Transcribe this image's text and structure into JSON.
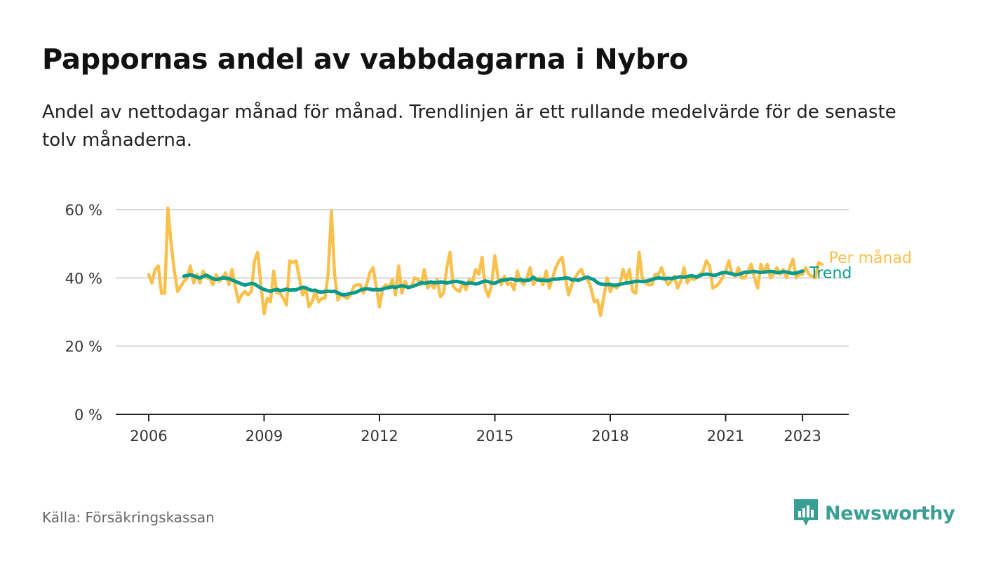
{
  "title": "Pappornas andel av vabbdagarna i Nybro",
  "subtitle": "Andel av nettodagar månad för månad. Trendlinjen är ett rullande medelvärde för de senaste tolv månaderna.",
  "source": "Källa: Försäkringskassan",
  "brand": "Newsworthy",
  "colors": {
    "monthly": "#f9c04c",
    "trend": "#0a9a8c",
    "grid": "#d6d6d6",
    "axis": "#222222",
    "brand": "#3a9e94"
  },
  "chart_data": {
    "type": "line",
    "x_start": "2006-01",
    "ylim": [
      0,
      60
    ],
    "yticks": [
      {
        "value": 0,
        "label": "0 %"
      },
      {
        "value": 20,
        "label": "20 %"
      },
      {
        "value": 40,
        "label": "40 %"
      },
      {
        "value": 60,
        "label": "60 %"
      }
    ],
    "xticks": [
      {
        "value": "2006-01",
        "label": "2006"
      },
      {
        "value": "2009-01",
        "label": "2009"
      },
      {
        "value": "2012-01",
        "label": "2012"
      },
      {
        "value": "2015-01",
        "label": "2015"
      },
      {
        "value": "2018-01",
        "label": "2018"
      },
      {
        "value": "2021-01",
        "label": "2021"
      },
      {
        "value": "2023-01",
        "label": "2023"
      }
    ],
    "grid": true,
    "series": [
      {
        "name": "Per månad",
        "start": "2006-01",
        "values": [
          41,
          38.5,
          42.5,
          43.5,
          35.5,
          35.5,
          60.5,
          50,
          42,
          36,
          37.5,
          39,
          40,
          43.5,
          38.5,
          41,
          38.5,
          42,
          40,
          40,
          38,
          41,
          39,
          40,
          41.5,
          38,
          42.5,
          37.5,
          33,
          35,
          36,
          35,
          36,
          45,
          47.5,
          38,
          29.5,
          34,
          33,
          42,
          35.5,
          35.5,
          34,
          32,
          45,
          44.5,
          45,
          40,
          35,
          37,
          31.5,
          33,
          36,
          33,
          34,
          34,
          41.5,
          59.5,
          41,
          33.5,
          35,
          34.5,
          34,
          35,
          37.5,
          38,
          38,
          35.5,
          38,
          41.5,
          43,
          37.5,
          31.5,
          37,
          38,
          37,
          39.5,
          35,
          43.5,
          35.5,
          39,
          37,
          37.5,
          40,
          39.5,
          38,
          42.5,
          37,
          38.5,
          37,
          39.5,
          34.5,
          35.5,
          43,
          47.5,
          37.5,
          36.5,
          36,
          38.5,
          36.5,
          39.5,
          38.5,
          42.5,
          41,
          46,
          37,
          34.5,
          38,
          46.5,
          40,
          38,
          40.5,
          38,
          38.5,
          36.5,
          42,
          39,
          38,
          40,
          43,
          38,
          39.5,
          40,
          38,
          42,
          37,
          40,
          43,
          45,
          46,
          40,
          35,
          38,
          40,
          41.5,
          42.5,
          40,
          39.5,
          37,
          33,
          33.5,
          29,
          34.5,
          40,
          36,
          38,
          37,
          38,
          42.5,
          39.5,
          42.5,
          36,
          35.5,
          47.5,
          40,
          38.5,
          38,
          38,
          41,
          41,
          43,
          40,
          38,
          39,
          40.5,
          37,
          39,
          43,
          38.5,
          40,
          39.5,
          40,
          41,
          42,
          45,
          43.5,
          37,
          37.5,
          38.5,
          40,
          42,
          45,
          41,
          40.5,
          43,
          40,
          40,
          42,
          44,
          40,
          37,
          44,
          41.5,
          44,
          40,
          41,
          43,
          41,
          42.5,
          40,
          43,
          45.5,
          40,
          41,
          41,
          43,
          41,
          40.5,
          40,
          44.5,
          44
        ]
      },
      {
        "name": "Trend",
        "start": "2006-12",
        "values": [
          40.5,
          40.7,
          40.9,
          40.6,
          40.2,
          40,
          40.4,
          40.8,
          40.3,
          39.8,
          39.5,
          39.7,
          40,
          39.9,
          39.8,
          39.4,
          39,
          38.6,
          38.2,
          37.9,
          38.1,
          38.4,
          38.2,
          37.6,
          37,
          36.6,
          36.3,
          36.1,
          36.4,
          36.6,
          36.3,
          36.4,
          36.7,
          36.4,
          36.5,
          36.5,
          36.9,
          37.2,
          37.1,
          36.6,
          36.3,
          36.4,
          35.9,
          35.8,
          36,
          36.1,
          36,
          36.1,
          35.6,
          35.2,
          35,
          35.2,
          35.5,
          35.6,
          35.9,
          36.4,
          36.7,
          36.8,
          36.7,
          36.5,
          36.6,
          36.5,
          36.7,
          37,
          37.2,
          37.4,
          37.2,
          37.5,
          37.7,
          37.5,
          37.2,
          37.4,
          37.7,
          38.1,
          38.6,
          38.4,
          38.6,
          38.8,
          38.6,
          38.6,
          38.8,
          38.7,
          38.5,
          38.7,
          38.9,
          39,
          38.8,
          38.6,
          38.3,
          38.5,
          38.4,
          38.2,
          38.4,
          38.8,
          39.1,
          38.9,
          38.5,
          38.4,
          38.9,
          39.3,
          39.4,
          39.5,
          39.7,
          39.5,
          39.3,
          39.5,
          39.2,
          39.3,
          39.4,
          40.2,
          39.5,
          39.3,
          39.4,
          39.2,
          39.3,
          39.6,
          39.6,
          39.7,
          39.8,
          40,
          39.9,
          39.4,
          39.5,
          39.3,
          39.6,
          40,
          40.2,
          39.8,
          39.4,
          38.6,
          38.2,
          38.1,
          38,
          38.1,
          37.8,
          37.9,
          38.1,
          38.3,
          38.5,
          38.6,
          38.8,
          39,
          39,
          38.9,
          39,
          39.2,
          39.5,
          39.8,
          40,
          39.9,
          39.7,
          39.9,
          39.8,
          40,
          40.2,
          40.3,
          40.2,
          40.4,
          40.6,
          40.5,
          40.2,
          40.7,
          41,
          41.1,
          41,
          40.8,
          40.8,
          41.2,
          41.5,
          41.6,
          41.4,
          41.2,
          40.9,
          41,
          41.3,
          41.7,
          41.6,
          41.8,
          41.9,
          41.7,
          41.6,
          41.7,
          41.8,
          41.9,
          41.8,
          41.5,
          41.6,
          41.8,
          41.7,
          41.5,
          41.3,
          41.4,
          41.7,
          42
        ]
      }
    ]
  }
}
